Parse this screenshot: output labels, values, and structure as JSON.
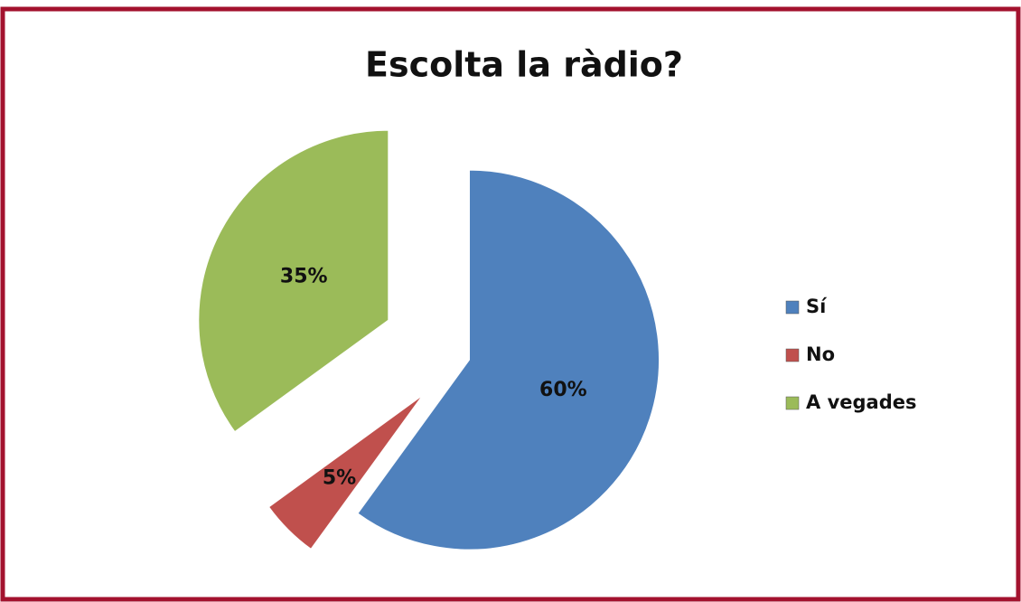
{
  "chart_data": {
    "type": "pie",
    "title": "Escolta la ràdio?",
    "categories": [
      "Sí",
      "No",
      "A vegades"
    ],
    "values": [
      60,
      5,
      35
    ],
    "value_labels": [
      "60%",
      "5%",
      "35%"
    ],
    "colors": [
      "#4f81bd",
      "#c0504d",
      "#9bbb59"
    ],
    "legend": "right"
  }
}
